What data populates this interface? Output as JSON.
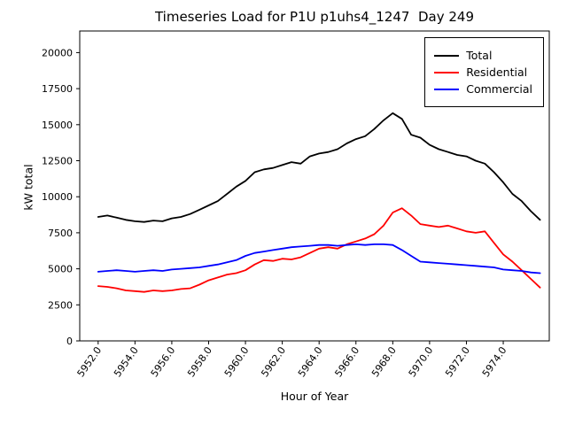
{
  "chart_data": {
    "type": "line",
    "title": "Timeseries Load for P1U p1uhs4_1247  Day 249",
    "xlabel": "Hour of Year",
    "ylabel": "kW total",
    "xlim": [
      5951.0,
      5976.5
    ],
    "ylim": [
      0,
      21500
    ],
    "grid": false,
    "legend_position": "upper right",
    "x_ticks": [
      5952,
      5954,
      5956,
      5958,
      5960,
      5962,
      5964,
      5966,
      5968,
      5970,
      5972,
      5974
    ],
    "x_tick_labels": [
      "5952.0",
      "5954.0",
      "5956.0",
      "5958.0",
      "5960.0",
      "5962.0",
      "5964.0",
      "5966.0",
      "5968.0",
      "5970.0",
      "5972.0",
      "5974.0"
    ],
    "y_ticks": [
      0,
      2500,
      5000,
      7500,
      10000,
      12500,
      15000,
      17500,
      20000
    ],
    "x": [
      5952.0,
      5952.5,
      5953.0,
      5953.5,
      5954.0,
      5954.5,
      5955.0,
      5955.5,
      5956.0,
      5956.5,
      5957.0,
      5957.5,
      5958.0,
      5958.5,
      5959.0,
      5959.5,
      5960.0,
      5960.5,
      5961.0,
      5961.5,
      5962.0,
      5962.5,
      5963.0,
      5963.5,
      5964.0,
      5964.5,
      5965.0,
      5965.5,
      5966.0,
      5966.5,
      5967.0,
      5967.5,
      5968.0,
      5968.5,
      5969.0,
      5969.5,
      5970.0,
      5970.5,
      5971.0,
      5971.5,
      5972.0,
      5972.5,
      5973.0,
      5973.5,
      5974.0,
      5974.5,
      5975.0,
      5975.5,
      5976.0
    ],
    "series": [
      {
        "name": "Total",
        "color": "#000000",
        "values": [
          8600,
          8700,
          8550,
          8400,
          8300,
          8250,
          8350,
          8300,
          8500,
          8600,
          8800,
          9100,
          9400,
          9700,
          10200,
          10700,
          11100,
          11700,
          11900,
          12000,
          12200,
          12400,
          12300,
          12800,
          13000,
          13100,
          13300,
          13700,
          14000,
          14200,
          14700,
          15300,
          15800,
          15400,
          14300,
          14100,
          13600,
          13300,
          13100,
          12900,
          12800,
          12500,
          12300,
          11700,
          11000,
          10200,
          9700,
          9000,
          8400
        ]
      },
      {
        "name": "Residential",
        "color": "#ff0000",
        "values": [
          3800,
          3750,
          3650,
          3500,
          3450,
          3400,
          3500,
          3450,
          3500,
          3600,
          3650,
          3900,
          4200,
          4400,
          4600,
          4700,
          4900,
          5300,
          5600,
          5550,
          5700,
          5650,
          5800,
          6100,
          6400,
          6500,
          6400,
          6700,
          6900,
          7100,
          7400,
          8000,
          8900,
          9200,
          8700,
          8100,
          8000,
          7900,
          8000,
          7800,
          7600,
          7500,
          7600,
          6800,
          6000,
          5500,
          4900,
          4300,
          3700
        ]
      },
      {
        "name": "Commercial",
        "color": "#0000ff",
        "values": [
          4800,
          4850,
          4900,
          4850,
          4800,
          4850,
          4900,
          4850,
          4950,
          5000,
          5050,
          5100,
          5200,
          5300,
          5450,
          5600,
          5900,
          6100,
          6200,
          6300,
          6400,
          6500,
          6550,
          6600,
          6650,
          6650,
          6600,
          6650,
          6700,
          6650,
          6700,
          6700,
          6650,
          6300,
          5900,
          5500,
          5450,
          5400,
          5350,
          5300,
          5250,
          5200,
          5150,
          5100,
          4950,
          4900,
          4850,
          4750,
          4700
        ]
      }
    ]
  }
}
